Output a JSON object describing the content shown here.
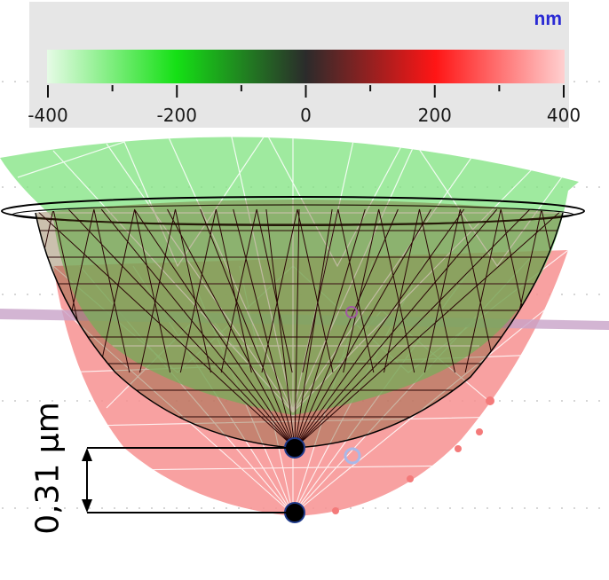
{
  "legend": {
    "unit": "nm",
    "ticks": [
      "-400",
      "-200",
      "0",
      "200",
      "400"
    ],
    "gradient": [
      "#e6fbe6",
      "#15e015",
      "#2b2b2b",
      "#ff1515",
      "#ffd0d0"
    ]
  },
  "measurement": {
    "label": "0,31 µm"
  },
  "colors": {
    "green_surface": "#7fe37f",
    "red_surface": "#f79090",
    "wire_mesh": "#1a0000",
    "marker": "#000000",
    "marker_outline": "#1f3a8a"
  }
}
